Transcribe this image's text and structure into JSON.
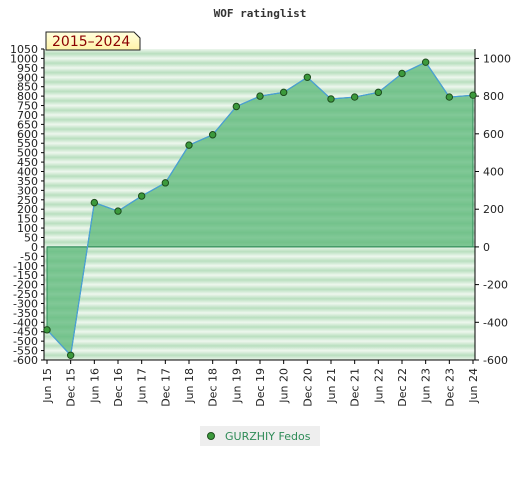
{
  "chart_data": {
    "type": "area",
    "title": "WOF ratinglist",
    "badge": "2015–2024",
    "x": [
      "Jun 15",
      "Dec 15",
      "Jun 16",
      "Dec 16",
      "Jun 17",
      "Dec 17",
      "Jun 18",
      "Dec 18",
      "Jun 19",
      "Dec 19",
      "Jun 20",
      "Dec 20",
      "Jun 21",
      "Dec 21",
      "Jun 22",
      "Dec 22",
      "Jun 23",
      "Dec 23",
      "Jun 24"
    ],
    "series": [
      {
        "name": "GURZHIY Fedos",
        "values": [
          -440,
          -575,
          235,
          190,
          270,
          340,
          540,
          595,
          745,
          800,
          820,
          900,
          785,
          795,
          820,
          920,
          980,
          795,
          805
        ]
      }
    ],
    "y_left": {
      "min": -600,
      "max": 1050,
      "step": 50
    },
    "y_right": {
      "min": -600,
      "max": 1000,
      "step": 200
    },
    "grid": true,
    "legend": "bottom-center",
    "colors": {
      "area": "#5cb87a",
      "line": "#4a9fd8",
      "marker": "#3c9a3c",
      "baseline": "#2e8b57"
    }
  }
}
